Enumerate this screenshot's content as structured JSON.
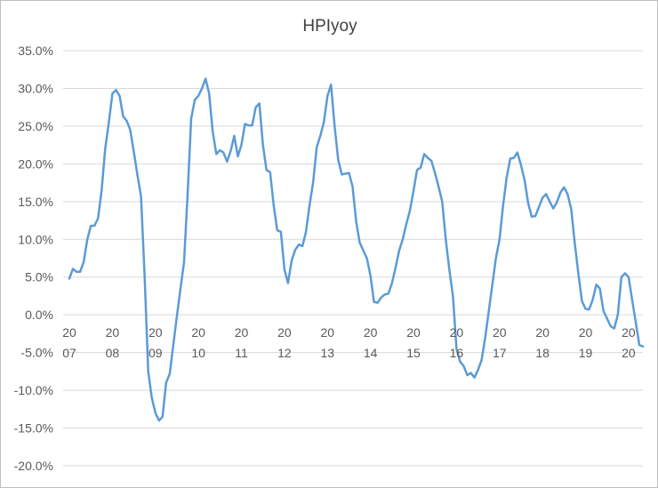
{
  "chart_data": {
    "type": "line",
    "title": "HPIyoy",
    "xlabel": "",
    "ylabel": "",
    "ylim": [
      -0.2,
      0.35
    ],
    "ytick_step": 0.05,
    "y_tick_labels": [
      "35.0%",
      "30.0%",
      "25.0%",
      "20.0%",
      "15.0%",
      "10.0%",
      "5.0%",
      "0.0%",
      "-5.0%",
      "-10.0%",
      "-15.0%",
      "-20.0%"
    ],
    "x_tick_labels": [
      {
        "top": "20",
        "bottom": "07"
      },
      {
        "top": "20",
        "bottom": "08"
      },
      {
        "top": "20",
        "bottom": "09"
      },
      {
        "top": "20",
        "bottom": "10"
      },
      {
        "top": "20",
        "bottom": "11"
      },
      {
        "top": "20",
        "bottom": "12"
      },
      {
        "top": "20",
        "bottom": "13"
      },
      {
        "top": "20",
        "bottom": "14"
      },
      {
        "top": "20",
        "bottom": "15"
      },
      {
        "top": "20",
        "bottom": "16"
      },
      {
        "top": "20",
        "bottom": "17"
      },
      {
        "top": "20",
        "bottom": "18"
      },
      {
        "top": "20",
        "bottom": "19"
      },
      {
        "top": "20",
        "bottom": "20"
      }
    ],
    "grid": "horizontal",
    "legend": "none",
    "series_color": "#5b9bd5",
    "series": [
      {
        "x": [
          2007.0,
          2007.083,
          2007.167,
          2007.25,
          2007.333,
          2007.417,
          2007.5,
          2007.583,
          2007.667,
          2007.75,
          2007.833,
          2007.917,
          2008.0,
          2008.083,
          2008.167,
          2008.25,
          2008.333,
          2008.417,
          2008.5,
          2008.583,
          2008.667,
          2008.75,
          2008.833,
          2008.917,
          2009.0,
          2009.083,
          2009.167,
          2009.25,
          2009.333,
          2009.417,
          2009.5,
          2009.583,
          2009.667,
          2009.75,
          2009.833,
          2009.917,
          2010.0,
          2010.083,
          2010.167,
          2010.25,
          2010.333,
          2010.417,
          2010.5,
          2010.583,
          2010.667,
          2010.75,
          2010.833,
          2010.917,
          2011.0,
          2011.083,
          2011.167,
          2011.25,
          2011.333,
          2011.417,
          2011.5,
          2011.583,
          2011.667,
          2011.75,
          2011.833,
          2011.917,
          2012.0,
          2012.083,
          2012.167,
          2012.25,
          2012.333,
          2012.417,
          2012.5,
          2012.583,
          2012.667,
          2012.75,
          2012.833,
          2012.917,
          2013.0,
          2013.083,
          2013.167,
          2013.25,
          2013.333,
          2013.417,
          2013.5,
          2013.583,
          2013.667,
          2013.75,
          2013.833,
          2013.917,
          2014.0,
          2014.083,
          2014.167,
          2014.25,
          2014.333,
          2014.417,
          2014.5,
          2014.583,
          2014.667,
          2014.75,
          2014.833,
          2014.917,
          2015.0,
          2015.083,
          2015.167,
          2015.25,
          2015.333,
          2015.417,
          2015.5,
          2015.583,
          2015.667,
          2015.75,
          2015.833,
          2015.917,
          2016.0,
          2016.083,
          2016.167,
          2016.25,
          2016.333,
          2016.417,
          2016.5,
          2016.583,
          2016.667,
          2016.75,
          2016.833,
          2016.917,
          2017.0,
          2017.083,
          2017.167,
          2017.25,
          2017.333,
          2017.417,
          2017.5,
          2017.583,
          2017.667,
          2017.75,
          2017.833,
          2017.917,
          2018.0,
          2018.083,
          2018.167,
          2018.25,
          2018.333,
          2018.417,
          2018.5,
          2018.583,
          2018.667,
          2018.75,
          2018.833,
          2018.917,
          2019.0,
          2019.083,
          2019.167,
          2019.25,
          2019.333,
          2019.417,
          2019.5,
          2019.583,
          2019.667,
          2019.75,
          2019.833,
          2019.917,
          2020.0,
          2020.083,
          2020.167,
          2020.25,
          2020.333
        ],
        "y": [
          0.048,
          0.061,
          0.057,
          0.057,
          0.07,
          0.1,
          0.118,
          0.118,
          0.128,
          0.165,
          0.22,
          0.255,
          0.293,
          0.298,
          0.29,
          0.263,
          0.257,
          0.245,
          0.215,
          0.185,
          0.157,
          0.05,
          -0.075,
          -0.11,
          -0.13,
          -0.14,
          -0.135,
          -0.09,
          -0.078,
          -0.04,
          -0.002,
          0.035,
          0.07,
          0.16,
          0.26,
          0.285,
          0.29,
          0.3,
          0.313,
          0.293,
          0.243,
          0.213,
          0.218,
          0.215,
          0.203,
          0.217,
          0.237,
          0.21,
          0.225,
          0.253,
          0.251,
          0.251,
          0.275,
          0.28,
          0.225,
          0.192,
          0.189,
          0.145,
          0.112,
          0.11,
          0.06,
          0.042,
          0.072,
          0.086,
          0.093,
          0.091,
          0.11,
          0.145,
          0.175,
          0.222,
          0.237,
          0.255,
          0.29,
          0.305,
          0.25,
          0.205,
          0.186,
          0.187,
          0.188,
          0.17,
          0.124,
          0.096,
          0.085,
          0.075,
          0.052,
          0.017,
          0.016,
          0.023,
          0.027,
          0.028,
          0.042,
          0.062,
          0.085,
          0.1,
          0.12,
          0.138,
          0.164,
          0.192,
          0.195,
          0.213,
          0.208,
          0.204,
          0.188,
          0.17,
          0.15,
          0.1,
          0.06,
          0.025,
          -0.045,
          -0.062,
          -0.068,
          -0.08,
          -0.077,
          -0.083,
          -0.073,
          -0.06,
          -0.03,
          0.005,
          0.04,
          0.075,
          0.1,
          0.145,
          0.182,
          0.207,
          0.208,
          0.215,
          0.198,
          0.178,
          0.148,
          0.13,
          0.131,
          0.143,
          0.155,
          0.16,
          0.15,
          0.141,
          0.149,
          0.162,
          0.169,
          0.16,
          0.14,
          0.095,
          0.055,
          0.018,
          0.008,
          0.007,
          0.02,
          0.04,
          0.035,
          0.005,
          -0.005,
          -0.015,
          -0.018,
          0.0,
          0.05,
          0.055,
          0.05,
          0.02,
          -0.01,
          -0.04,
          -0.042
        ]
      }
    ]
  }
}
